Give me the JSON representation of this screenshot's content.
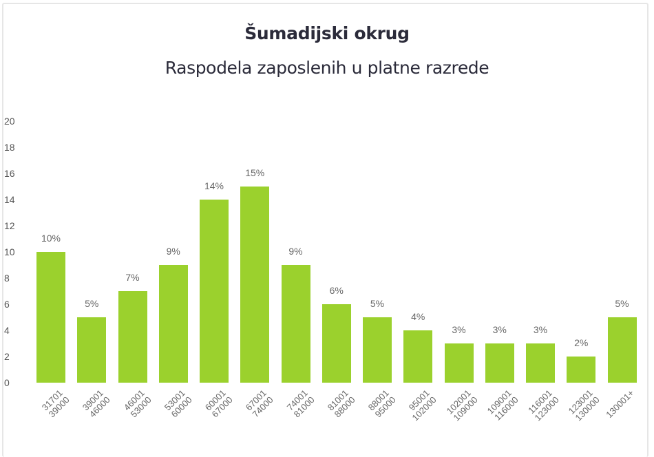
{
  "title": "Šumadijski okrug",
  "subtitle": "Raspodela zaposlenih u platne razrede",
  "colors": {
    "bar": "#9bd12d",
    "text": "#2b2b3a",
    "axis_text": "#555555",
    "label_text": "#666666",
    "border": "#e6e6e6"
  },
  "chart_data": {
    "type": "bar",
    "title": "Šumadijski okrug",
    "subtitle": "Raspodela zaposlenih u platne razrede",
    "xlabel": "",
    "ylabel": "",
    "ylim": [
      0,
      20
    ],
    "yticks": [
      "0",
      "2",
      "4",
      "6",
      "8",
      "10",
      "12",
      "14",
      "16",
      "18",
      "20"
    ],
    "grid": false,
    "legend": null,
    "categories": [
      "31701 39000",
      "39001 46000",
      "46001 53000",
      "53001 60000",
      "60001 67000",
      "67001 74000",
      "74001 81000",
      "81001 88000",
      "88001 95000",
      "95001 102000",
      "102001 109000",
      "109001 116000",
      "116001 123000",
      "123001 130000",
      "130001+"
    ],
    "category_lines": [
      [
        "31701",
        "39000"
      ],
      [
        "39001",
        "46000"
      ],
      [
        "46001",
        "53000"
      ],
      [
        "53001",
        "60000"
      ],
      [
        "60001",
        "67000"
      ],
      [
        "67001",
        "74000"
      ],
      [
        "74001",
        "81000"
      ],
      [
        "81001",
        "88000"
      ],
      [
        "88001",
        "95000"
      ],
      [
        "95001",
        "102000"
      ],
      [
        "102001",
        "109000"
      ],
      [
        "109001",
        "116000"
      ],
      [
        "116001",
        "123000"
      ],
      [
        "123001",
        "130000"
      ],
      [
        "130001+",
        ""
      ]
    ],
    "values": [
      10,
      5,
      7,
      9,
      14,
      15,
      9,
      6,
      5,
      4,
      3,
      3,
      3,
      2,
      5
    ],
    "data_labels": [
      "10%",
      "5%",
      "7%",
      "9%",
      "14%",
      "15%",
      "9%",
      "6%",
      "5%",
      "4%",
      "3%",
      "3%",
      "3%",
      "2%",
      "5%"
    ]
  }
}
